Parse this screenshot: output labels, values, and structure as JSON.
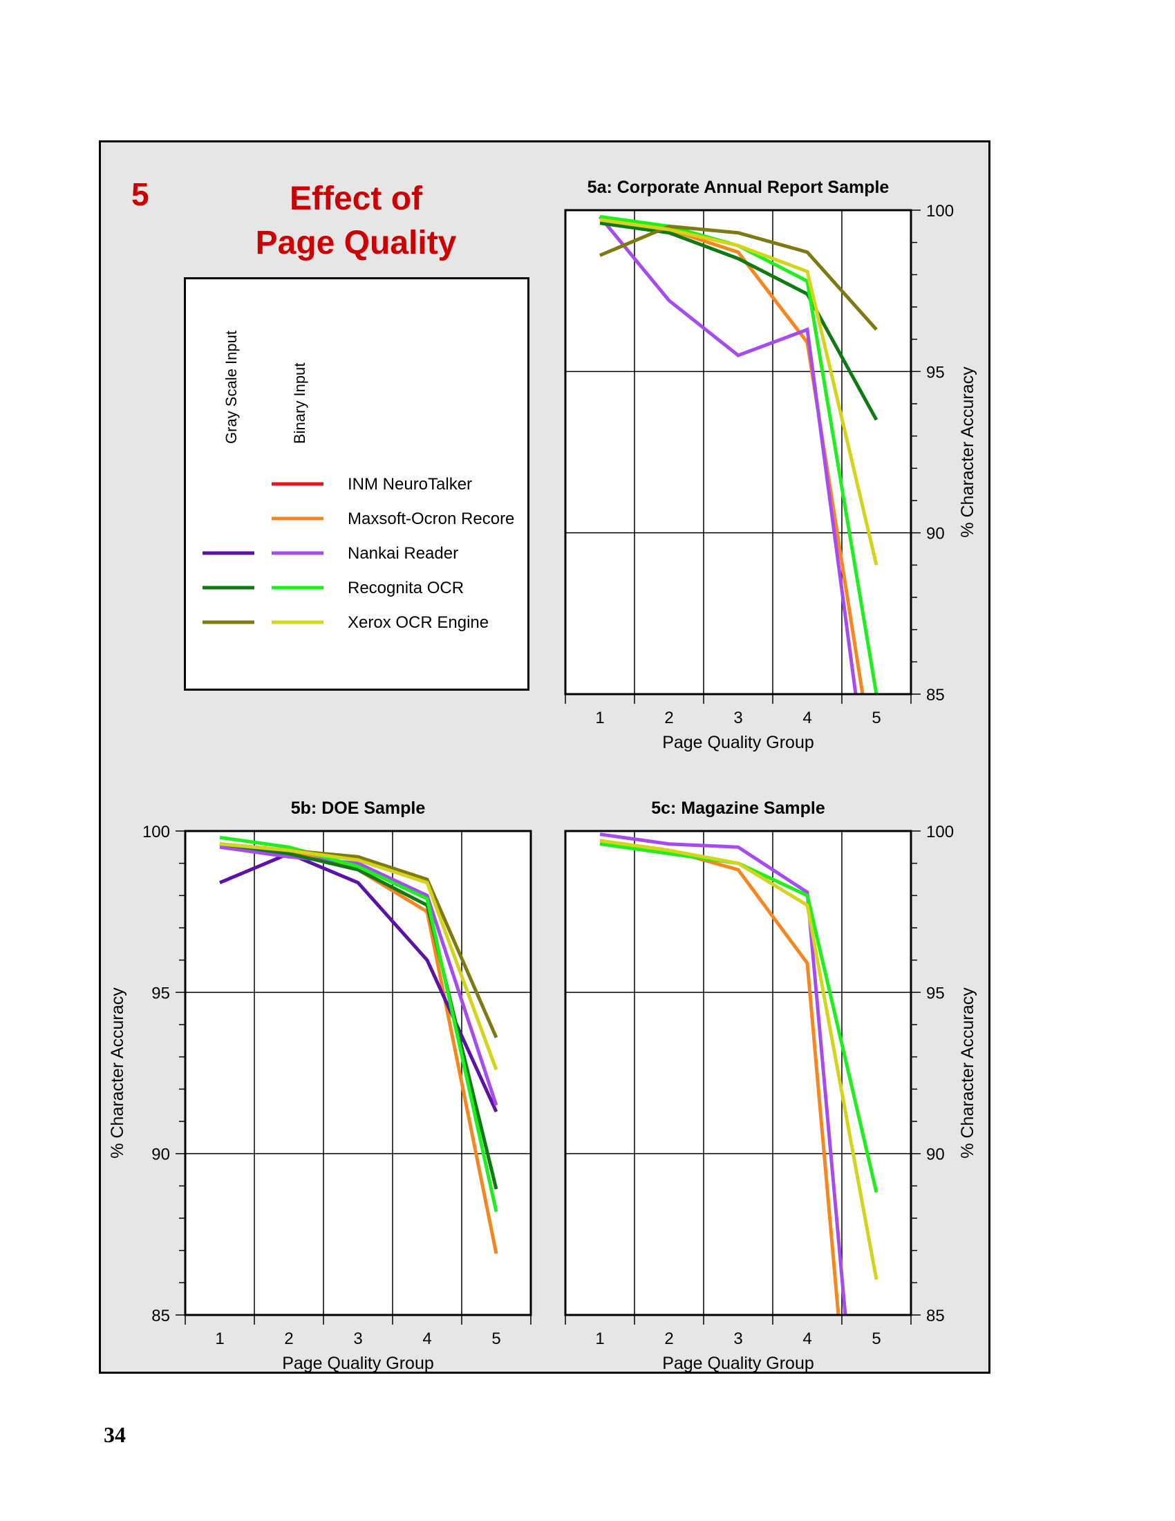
{
  "section": {
    "number": "5",
    "title_line1": "Effect of",
    "title_line2": "Page Quality"
  },
  "page_number": "34",
  "legend": {
    "column_headers": [
      "Gray Scale Input",
      "Binary Input"
    ],
    "entries": [
      {
        "label": "INM NeuroTalker",
        "gray_color": null,
        "binary_color": "#e8141c"
      },
      {
        "label": "Maxsoft-Ocron Recore",
        "gray_color": null,
        "binary_color": "#f7861f"
      },
      {
        "label": "Nankai Reader",
        "gray_color": "#5a12a8",
        "binary_color": "#a64bf0"
      },
      {
        "label": "Recognita OCR",
        "gray_color": "#0f7a12",
        "binary_color": "#1ef01e"
      },
      {
        "label": "Xerox OCR Engine",
        "gray_color": "#7d7a12",
        "binary_color": "#d4d41c"
      }
    ]
  },
  "chart_data": [
    {
      "type": "line",
      "title": "5a:  Corporate Annual Report Sample",
      "xlabel": "Page Quality Group",
      "ylabel": "% Character Accuracy",
      "x": [
        1,
        2,
        3,
        4,
        5
      ],
      "xlim": [
        0.5,
        5.5
      ],
      "ylim": [
        85,
        100
      ],
      "yticks": [
        85,
        90,
        95,
        100
      ],
      "y_axis_side": "right",
      "grid": true,
      "series": [
        {
          "name": "Maxsoft-Ocron Recore",
          "input": "binary",
          "color": "#f7861f",
          "points": [
            [
              1,
              99.7
            ],
            [
              2,
              99.4
            ],
            [
              3,
              98.7
            ],
            [
              4,
              95.9
            ],
            [
              4.8,
              85.0
            ]
          ]
        },
        {
          "name": "Nankai Reader",
          "input": "binary",
          "color": "#a64bf0",
          "points": [
            [
              1,
              99.8
            ],
            [
              2,
              97.2
            ],
            [
              3,
              95.5
            ],
            [
              4,
              96.3
            ],
            [
              4.7,
              85.0
            ]
          ]
        },
        {
          "name": "Recognita OCR",
          "input": "gray",
          "color": "#0f7a12",
          "points": [
            [
              1,
              99.6
            ],
            [
              2,
              99.3
            ],
            [
              3,
              98.5
            ],
            [
              4,
              97.4
            ],
            [
              5,
              93.5
            ]
          ]
        },
        {
          "name": "Recognita OCR",
          "input": "binary",
          "color": "#1ef01e",
          "points": [
            [
              1,
              99.8
            ],
            [
              2,
              99.5
            ],
            [
              3,
              98.9
            ],
            [
              4,
              97.8
            ],
            [
              5,
              85.0
            ]
          ]
        },
        {
          "name": "Xerox OCR Engine",
          "input": "gray",
          "color": "#7d7a12",
          "points": [
            [
              1,
              98.6
            ],
            [
              2,
              99.5
            ],
            [
              3,
              99.3
            ],
            [
              4,
              98.7
            ],
            [
              5,
              96.3
            ]
          ]
        },
        {
          "name": "Xerox OCR Engine",
          "input": "binary",
          "color": "#d4d41c",
          "points": [
            [
              1,
              99.7
            ],
            [
              2,
              99.4
            ],
            [
              3,
              98.9
            ],
            [
              4,
              98.1
            ],
            [
              5,
              89.0
            ]
          ]
        }
      ]
    },
    {
      "type": "line",
      "title": "5b:  DOE Sample",
      "xlabel": "Page Quality Group",
      "ylabel": "% Character Accuracy",
      "x": [
        1,
        2,
        3,
        4,
        5
      ],
      "xlim": [
        0.5,
        5.5
      ],
      "ylim": [
        85,
        100
      ],
      "yticks": [
        85,
        90,
        95,
        100
      ],
      "y_axis_side": "left",
      "grid": true,
      "series": [
        {
          "name": "Maxsoft-Ocron Recore",
          "input": "binary",
          "color": "#f7861f",
          "points": [
            [
              1,
              99.6
            ],
            [
              2,
              99.4
            ],
            [
              3,
              98.8
            ],
            [
              4,
              97.5
            ],
            [
              5,
              86.9
            ]
          ]
        },
        {
          "name": "Nankai Reader",
          "input": "gray",
          "color": "#5a12a8",
          "points": [
            [
              1,
              98.4
            ],
            [
              2,
              99.3
            ],
            [
              3,
              98.4
            ],
            [
              4,
              96.0
            ],
            [
              5,
              91.3
            ]
          ]
        },
        {
          "name": "Nankai Reader",
          "input": "binary",
          "color": "#a64bf0",
          "points": [
            [
              1,
              99.5
            ],
            [
              2,
              99.2
            ],
            [
              3,
              99.0
            ],
            [
              4,
              98.0
            ],
            [
              5,
              91.5
            ]
          ]
        },
        {
          "name": "Recognita OCR",
          "input": "gray",
          "color": "#0f7a12",
          "points": [
            [
              1,
              99.6
            ],
            [
              2,
              99.3
            ],
            [
              3,
              98.8
            ],
            [
              4,
              97.7
            ],
            [
              5,
              88.9
            ]
          ]
        },
        {
          "name": "Recognita OCR",
          "input": "binary",
          "color": "#1ef01e",
          "points": [
            [
              1,
              99.8
            ],
            [
              2,
              99.5
            ],
            [
              3,
              98.9
            ],
            [
              4,
              97.9
            ],
            [
              5,
              88.2
            ]
          ]
        },
        {
          "name": "Xerox OCR Engine",
          "input": "gray",
          "color": "#7d7a12",
          "points": [
            [
              1,
              99.6
            ],
            [
              2,
              99.4
            ],
            [
              3,
              99.2
            ],
            [
              4,
              98.5
            ],
            [
              5,
              93.6
            ]
          ]
        },
        {
          "name": "Xerox OCR Engine",
          "input": "binary",
          "color": "#d4d41c",
          "points": [
            [
              1,
              99.6
            ],
            [
              2,
              99.4
            ],
            [
              3,
              99.1
            ],
            [
              4,
              98.4
            ],
            [
              5,
              92.6
            ]
          ]
        }
      ]
    },
    {
      "type": "line",
      "title": "5c:  Magazine Sample",
      "xlabel": "Page Quality Group",
      "ylabel": "% Character Accuracy",
      "x": [
        1,
        2,
        3,
        4,
        5
      ],
      "xlim": [
        0.5,
        5.5
      ],
      "ylim": [
        85,
        100
      ],
      "yticks": [
        85,
        90,
        95,
        100
      ],
      "y_axis_side": "right",
      "grid": true,
      "series": [
        {
          "name": "Maxsoft-Ocron Recore",
          "input": "binary",
          "color": "#f7861f",
          "points": [
            [
              1,
              99.7
            ],
            [
              2,
              99.4
            ],
            [
              3,
              98.8
            ],
            [
              4,
              95.9
            ],
            [
              4.45,
              85.0
            ]
          ]
        },
        {
          "name": "Nankai Reader",
          "input": "binary",
          "color": "#a64bf0",
          "points": [
            [
              1,
              99.9
            ],
            [
              2,
              99.6
            ],
            [
              3,
              99.5
            ],
            [
              4,
              98.1
            ],
            [
              4.55,
              85.0
            ]
          ]
        },
        {
          "name": "Recognita OCR",
          "input": "binary",
          "color": "#1ef01e",
          "points": [
            [
              1,
              99.6
            ],
            [
              2,
              99.3
            ],
            [
              3,
              99.0
            ],
            [
              4,
              98.0
            ],
            [
              5,
              88.8
            ]
          ]
        },
        {
          "name": "Xerox OCR Engine",
          "input": "binary",
          "color": "#d4d41c",
          "points": [
            [
              1,
              99.7
            ],
            [
              2,
              99.4
            ],
            [
              3,
              99.0
            ],
            [
              4,
              97.7
            ],
            [
              5,
              86.1
            ]
          ]
        }
      ]
    }
  ]
}
